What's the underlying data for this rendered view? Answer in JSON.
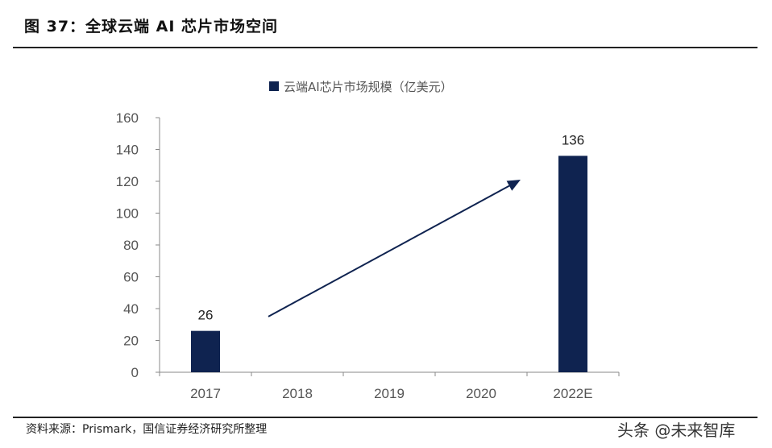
{
  "header": {
    "title": "图 37：全球云端 AI 芯片市场空间"
  },
  "footer": {
    "source": "资料来源：Prismark，国信证券经济研究所整理",
    "watermark": "头条 @未来智库"
  },
  "chart_data": {
    "type": "bar",
    "categories": [
      "2017",
      "2018",
      "2019",
      "2020",
      "2022E"
    ],
    "series": [
      {
        "name": "云端AI芯片市场规模（亿美元）",
        "values": [
          26,
          null,
          null,
          null,
          136
        ],
        "color": "#0f2350"
      }
    ],
    "data_labels": [
      "26",
      "",
      "",
      "",
      "136"
    ],
    "yticks": [
      0,
      20,
      40,
      60,
      80,
      100,
      120,
      140,
      160
    ],
    "ylim": [
      0,
      160
    ],
    "grid": false,
    "legend_position": "top",
    "annotation": {
      "type": "arrow",
      "from": [
        "2018",
        35
      ],
      "to": [
        "2020",
        121
      ],
      "color": "#0f2350"
    }
  }
}
